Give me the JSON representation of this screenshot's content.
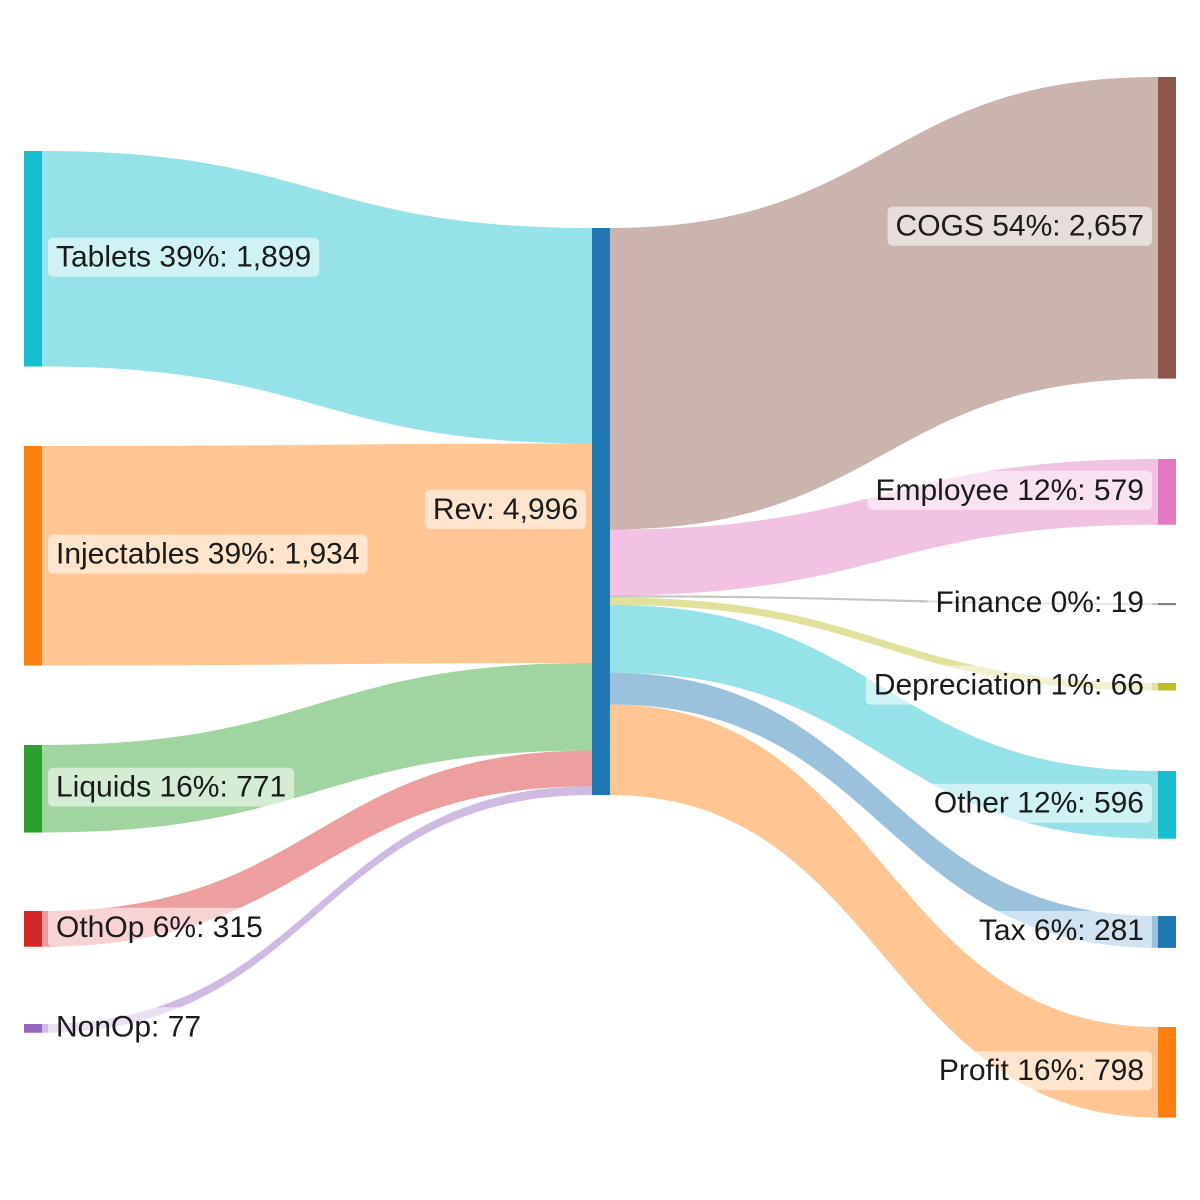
{
  "chart_data": {
    "type": "sankey",
    "sources": [
      {
        "id": "tablets",
        "text": "Tablets 39%: 1,899",
        "value": 1899,
        "color": "#17becf"
      },
      {
        "id": "injectables",
        "text": "Injectables 39%: 1,934",
        "value": 1934,
        "color": "#ff7f0e"
      },
      {
        "id": "liquids",
        "text": "Liquids 16%: 771",
        "value": 771,
        "color": "#2ca02c"
      },
      {
        "id": "othop",
        "text": "OthOp 6%: 315",
        "value": 315,
        "color": "#d62728"
      },
      {
        "id": "nonop",
        "text": "NonOp: 77",
        "value": 77,
        "color": "#9467bd"
      }
    ],
    "center": {
      "id": "rev",
      "text": "Rev: 4,996",
      "value": 4996,
      "color": "#1f77b4"
    },
    "targets": [
      {
        "id": "cogs",
        "text": "COGS 54%: 2,657",
        "value": 2657,
        "color": "#8c564b"
      },
      {
        "id": "employee",
        "text": "Employee 12%: 579",
        "value": 579,
        "color": "#e377c2"
      },
      {
        "id": "finance",
        "text": "Finance 0%: 19",
        "value": 19,
        "color": "#7f7f7f"
      },
      {
        "id": "depreciation",
        "text": "Depreciation 1%: 66",
        "value": 66,
        "color": "#bcbd22"
      },
      {
        "id": "other",
        "text": "Other 12%: 596",
        "value": 596,
        "color": "#17becf"
      },
      {
        "id": "tax",
        "text": "Tax 6%: 281",
        "value": 281,
        "color": "#1f77b4"
      },
      {
        "id": "profit",
        "text": "Profit 16%: 798",
        "value": 798,
        "color": "#ff7f0e"
      }
    ]
  }
}
